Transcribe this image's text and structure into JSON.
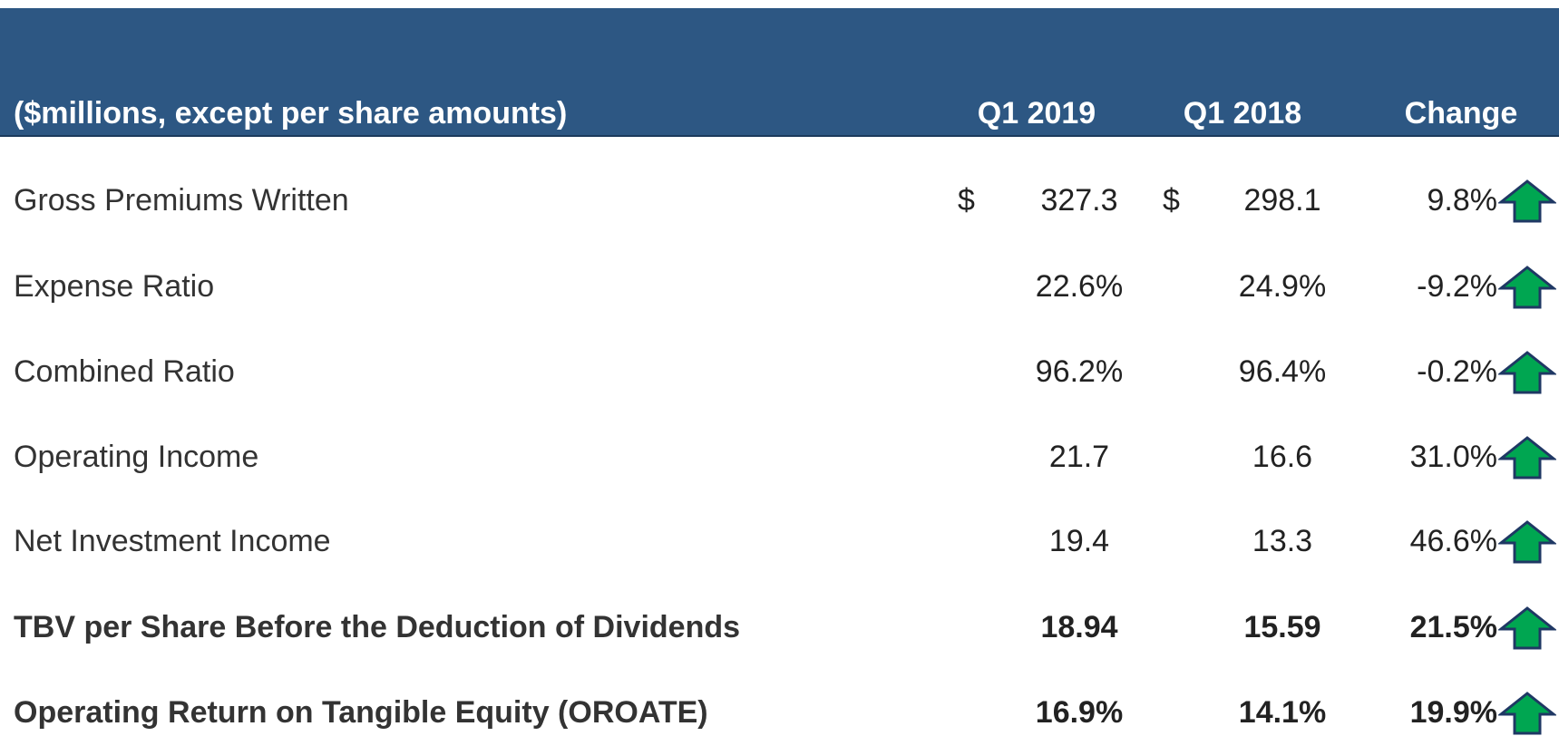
{
  "table": {
    "caption": "($millions, except per share amounts)",
    "columns": [
      "Q1 2019",
      "Q1 2018",
      "Change"
    ],
    "rows": [
      {
        "label": "Gross Premiums Written",
        "currency": "$",
        "q1_2019": "327.3",
        "q1_2018": "298.1",
        "change": "9.8%"
      },
      {
        "label": "Expense Ratio",
        "q1_2019": "22.6%",
        "q1_2018": "24.9%",
        "change": "-9.2%"
      },
      {
        "label": "Combined Ratio",
        "q1_2019": "96.2%",
        "q1_2018": "96.4%",
        "change": "-0.2%"
      },
      {
        "label": "Operating Income",
        "q1_2019": "21.7",
        "q1_2018": "16.6",
        "change": "31.0%"
      },
      {
        "label": "Net Investment Income",
        "q1_2019": "19.4",
        "q1_2018": "13.3",
        "change": "46.6%"
      },
      {
        "label": "TBV per Share Before the Deduction of Dividends",
        "q1_2019": "18.94",
        "q1_2018": "15.59",
        "change": "21.5%"
      },
      {
        "label": "Operating Return on Tangible Equity (OROATE)",
        "q1_2019": "16.9%",
        "q1_2018": "14.1%",
        "change": "19.9%"
      }
    ]
  }
}
